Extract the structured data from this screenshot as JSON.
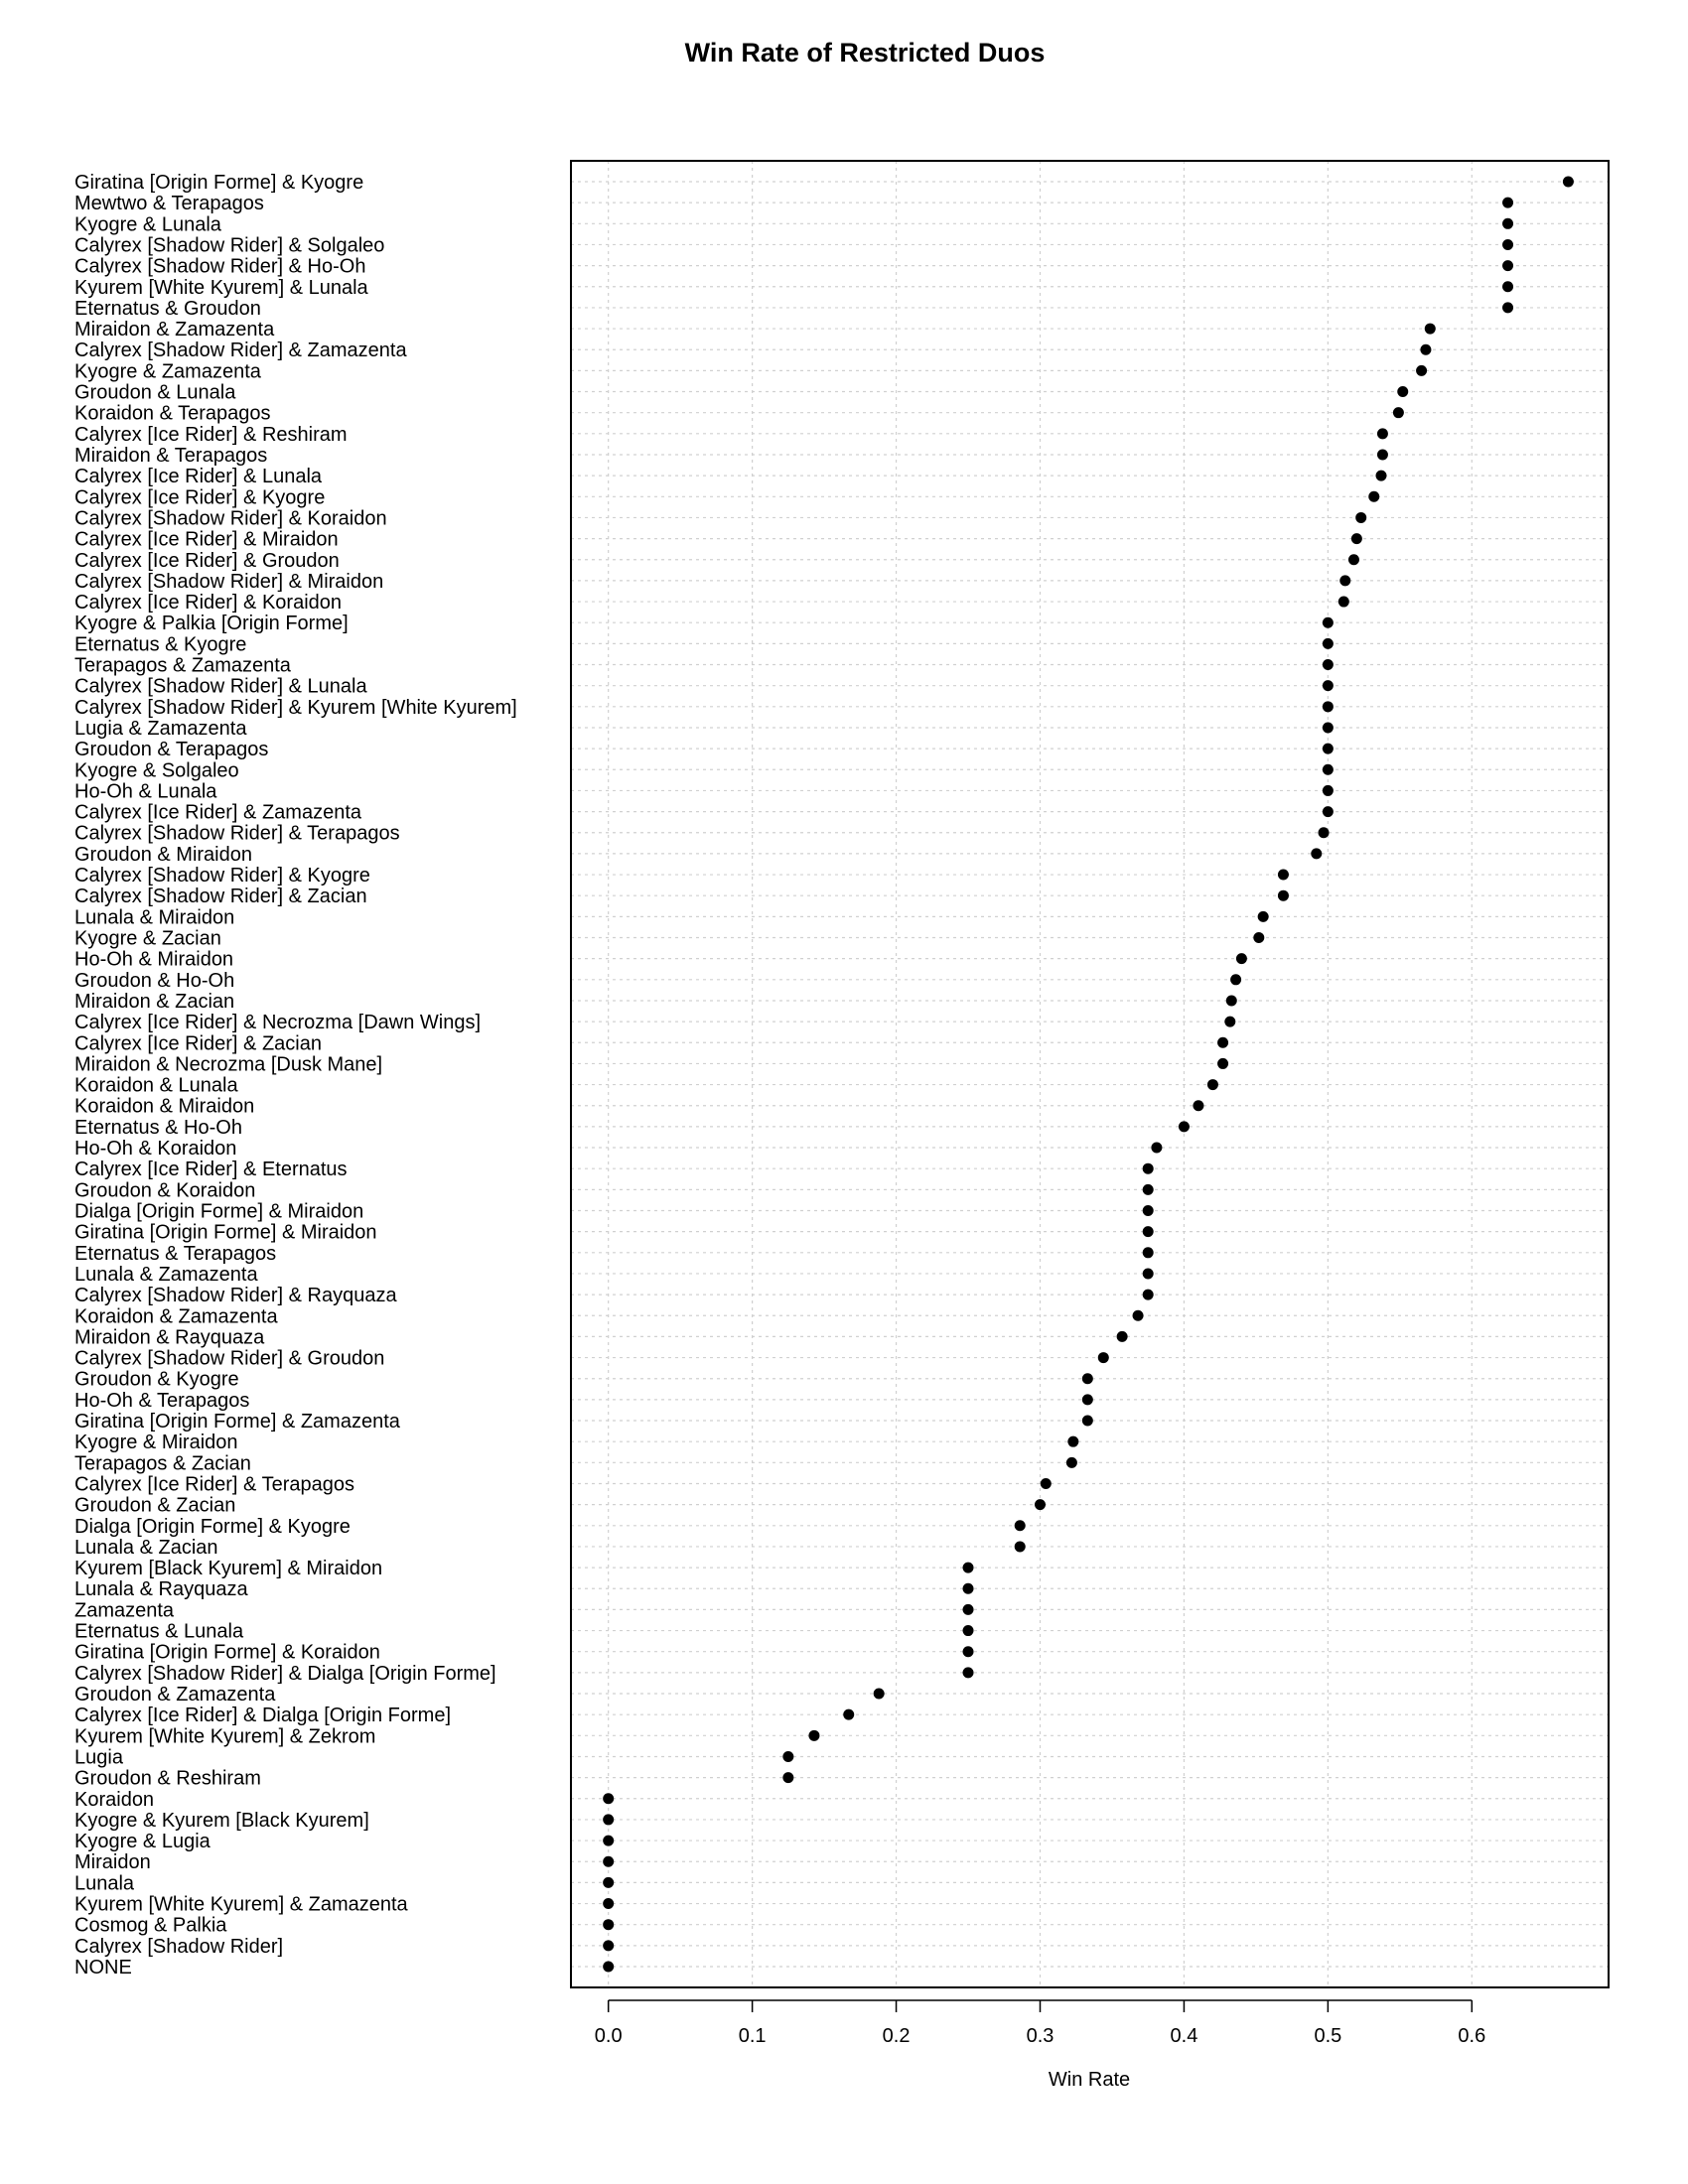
{
  "chart_data": {
    "type": "scatter",
    "title": "Win Rate of Restricted Duos",
    "xlabel": "Win Rate",
    "ylabel": "",
    "xlim": [
      -0.026,
      0.695
    ],
    "xticks": [
      0.0,
      0.1,
      0.2,
      0.3,
      0.4,
      0.5,
      0.6
    ],
    "xtick_labels": [
      "0.0",
      "0.1",
      "0.2",
      "0.3",
      "0.4",
      "0.5",
      "0.6"
    ],
    "grid": true,
    "categories": [
      "Giratina [Origin Forme] & Kyogre",
      "Mewtwo & Terapagos",
      "Kyogre & Lunala",
      "Calyrex [Shadow Rider] & Solgaleo",
      "Calyrex [Shadow Rider] & Ho-Oh",
      "Kyurem [White Kyurem] & Lunala",
      "Eternatus & Groudon",
      "Miraidon & Zamazenta",
      "Calyrex [Shadow Rider] & Zamazenta",
      "Kyogre & Zamazenta",
      "Groudon & Lunala",
      "Koraidon & Terapagos",
      "Calyrex [Ice Rider] & Reshiram",
      "Miraidon & Terapagos",
      "Calyrex [Ice Rider] & Lunala",
      "Calyrex [Ice Rider] & Kyogre",
      "Calyrex [Shadow Rider] & Koraidon",
      "Calyrex [Ice Rider] & Miraidon",
      "Calyrex [Ice Rider] & Groudon",
      "Calyrex [Shadow Rider] & Miraidon",
      "Calyrex [Ice Rider] & Koraidon",
      "Kyogre & Palkia [Origin Forme]",
      "Eternatus & Kyogre",
      "Terapagos & Zamazenta",
      "Calyrex [Shadow Rider] & Lunala",
      "Calyrex [Shadow Rider] & Kyurem [White Kyurem]",
      "Lugia & Zamazenta",
      "Groudon & Terapagos",
      "Kyogre & Solgaleo",
      "Ho-Oh & Lunala",
      "Calyrex [Ice Rider] & Zamazenta",
      "Calyrex [Shadow Rider] & Terapagos",
      "Groudon & Miraidon",
      "Calyrex [Shadow Rider] & Kyogre",
      "Calyrex [Shadow Rider] & Zacian",
      "Lunala & Miraidon",
      "Kyogre & Zacian",
      "Ho-Oh & Miraidon",
      "Groudon & Ho-Oh",
      "Miraidon & Zacian",
      "Calyrex [Ice Rider] & Necrozma [Dawn Wings]",
      "Calyrex [Ice Rider] & Zacian",
      "Miraidon & Necrozma [Dusk Mane]",
      "Koraidon & Lunala",
      "Koraidon & Miraidon",
      "Eternatus & Ho-Oh",
      "Ho-Oh & Koraidon",
      "Calyrex [Ice Rider] & Eternatus",
      "Groudon & Koraidon",
      "Dialga [Origin Forme] & Miraidon",
      "Giratina [Origin Forme] & Miraidon",
      "Eternatus & Terapagos",
      "Lunala & Zamazenta",
      "Calyrex [Shadow Rider] & Rayquaza",
      "Koraidon & Zamazenta",
      "Miraidon & Rayquaza",
      "Calyrex [Shadow Rider] & Groudon",
      "Groudon & Kyogre",
      "Ho-Oh & Terapagos",
      "Giratina [Origin Forme] & Zamazenta",
      "Kyogre & Miraidon",
      "Terapagos & Zacian",
      "Calyrex [Ice Rider] & Terapagos",
      "Groudon & Zacian",
      "Dialga [Origin Forme] & Kyogre",
      "Lunala & Zacian",
      "Kyurem [Black Kyurem] & Miraidon",
      "Lunala & Rayquaza",
      "Zamazenta",
      "Eternatus & Lunala",
      "Giratina [Origin Forme] & Koraidon",
      "Calyrex [Shadow Rider] & Dialga [Origin Forme]",
      "Groudon & Zamazenta",
      "Calyrex [Ice Rider] & Dialga [Origin Forme]",
      "Kyurem [White Kyurem] & Zekrom",
      "Lugia",
      "Groudon & Reshiram",
      "Koraidon",
      "Kyogre & Kyurem [Black Kyurem]",
      "Kyogre & Lugia",
      "Miraidon",
      "Lunala",
      "Kyurem [White Kyurem] & Zamazenta",
      "Cosmog & Palkia",
      "Calyrex [Shadow Rider]",
      "NONE"
    ],
    "values": [
      0.667,
      0.625,
      0.625,
      0.625,
      0.625,
      0.625,
      0.625,
      0.571,
      0.568,
      0.565,
      0.552,
      0.549,
      0.538,
      0.538,
      0.537,
      0.532,
      0.523,
      0.52,
      0.518,
      0.512,
      0.511,
      0.5,
      0.5,
      0.5,
      0.5,
      0.5,
      0.5,
      0.5,
      0.5,
      0.5,
      0.5,
      0.497,
      0.492,
      0.469,
      0.469,
      0.455,
      0.452,
      0.44,
      0.436,
      0.433,
      0.432,
      0.427,
      0.427,
      0.42,
      0.41,
      0.4,
      0.381,
      0.375,
      0.375,
      0.375,
      0.375,
      0.375,
      0.375,
      0.375,
      0.368,
      0.357,
      0.344,
      0.333,
      0.333,
      0.333,
      0.323,
      0.322,
      0.304,
      0.3,
      0.286,
      0.286,
      0.25,
      0.25,
      0.25,
      0.25,
      0.25,
      0.25,
      0.188,
      0.167,
      0.143,
      0.125,
      0.125,
      0.0,
      0.0,
      0.0,
      0.0,
      0.0,
      0.0,
      0.0,
      0.0,
      0.0
    ]
  }
}
